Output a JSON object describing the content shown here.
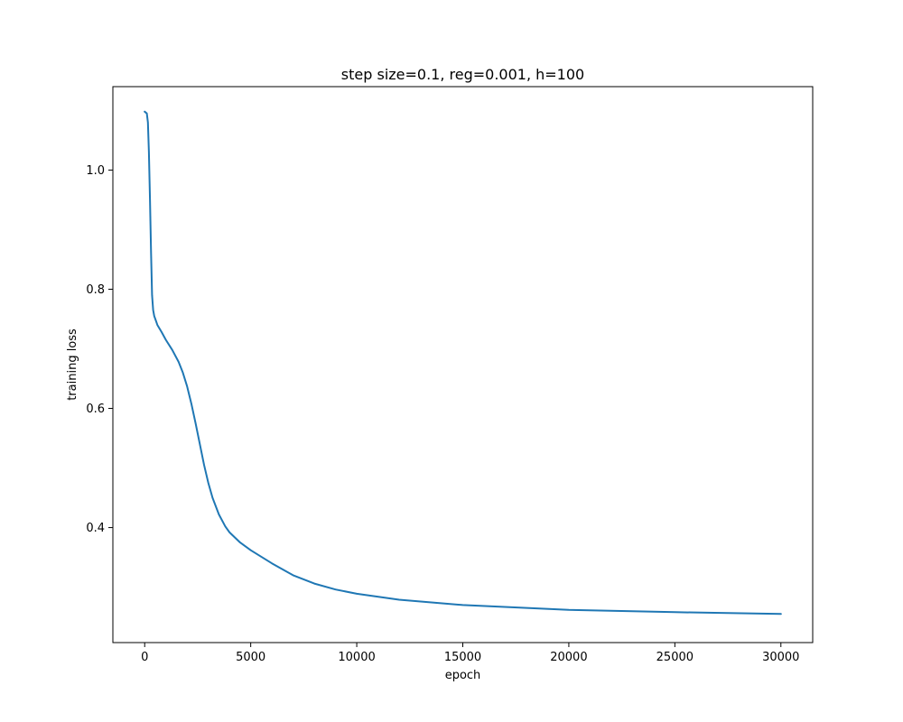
{
  "chart_data": {
    "type": "line",
    "title": "step size=0.1, reg=0.001, h=100",
    "xlabel": "epoch",
    "ylabel": "training loss",
    "xlim": [
      -1500,
      31500
    ],
    "ylim": [
      0.207,
      1.14
    ],
    "xticks": [
      0,
      5000,
      10000,
      15000,
      20000,
      25000,
      30000
    ],
    "yticks": [
      0.4,
      0.6,
      0.8,
      1.0
    ],
    "xtick_labels": [
      "0",
      "5000",
      "10000",
      "15000",
      "20000",
      "25000",
      "30000"
    ],
    "ytick_labels": [
      "0.4",
      "0.6",
      "0.8",
      "1.0"
    ],
    "grid": false,
    "series": [
      {
        "name": "training loss",
        "color": "#1f77b4",
        "x": [
          0,
          100,
          150,
          200,
          250,
          300,
          350,
          400,
          450,
          500,
          600,
          800,
          1000,
          1300,
          1600,
          1800,
          2000,
          2200,
          2400,
          2600,
          2800,
          3000,
          3200,
          3500,
          3800,
          4000,
          4500,
          5000,
          6000,
          7000,
          8000,
          9000,
          10000,
          12000,
          15000,
          20000,
          25000,
          30000
        ],
        "y": [
          1.098,
          1.095,
          1.08,
          1.03,
          0.95,
          0.86,
          0.79,
          0.765,
          0.755,
          0.75,
          0.74,
          0.728,
          0.715,
          0.698,
          0.678,
          0.66,
          0.637,
          0.608,
          0.575,
          0.54,
          0.505,
          0.475,
          0.45,
          0.422,
          0.402,
          0.392,
          0.375,
          0.362,
          0.34,
          0.32,
          0.306,
          0.296,
          0.289,
          0.279,
          0.27,
          0.262,
          0.258,
          0.255
        ]
      }
    ]
  }
}
